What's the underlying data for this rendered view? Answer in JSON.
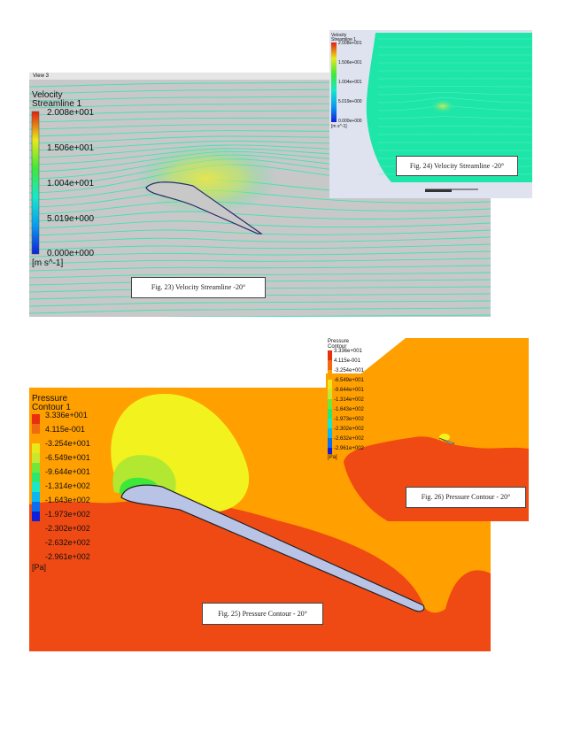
{
  "fig23": {
    "view_label": "View 3",
    "legend_title": "Velocity",
    "legend_subtitle": "Streamline 1",
    "levels": [
      "2.008e+001",
      "1.506e+001",
      "1.004e+001",
      "5.019e+000",
      "0.000e+000"
    ],
    "unit": "[m s^-1]",
    "caption": "Fig. 23) Velocity Streamline -20°"
  },
  "fig24": {
    "legend_title": "Velocity",
    "legend_subtitle": "Streamline 1",
    "levels": [
      "2.008e+001",
      "1.506e+001",
      "1.004e+001",
      "5.019e+000",
      "0.000e+000"
    ],
    "unit": "[m s^-1]",
    "caption": "Fig. 24) Velocity Streamline -20°"
  },
  "fig25": {
    "legend_title": "Pressure",
    "legend_subtitle": "Contour 1",
    "levels": [
      "3.336e+001",
      "4.115e-001",
      "-3.254e+001",
      "-6.549e+001",
      "-9.644e+001",
      "-1.314e+002",
      "-1.643e+002",
      "-1.973e+002",
      "-2.302e+002",
      "-2.632e+002",
      "-2.961e+002"
    ],
    "unit": "[Pa]",
    "caption": "Fig. 25) Pressure Contour - 20°"
  },
  "fig26": {
    "legend_title": "Pressure",
    "legend_subtitle": "Contour",
    "levels": [
      "3.336e+001",
      "4.115e-001",
      "-3.254e+001",
      "-6.549e+001",
      "-9.644e+001",
      "-1.314e+002",
      "-1.643e+002",
      "-1.973e+002",
      "-2.302e+002",
      "-2.632e+002",
      "-2.961e+002"
    ],
    "unit": "[Pa]",
    "caption": "Fig. 26) Pressure Contour - 20°"
  },
  "colors": {
    "stream_bg": "#c8c8c8",
    "stream_line": "#3fe3b4",
    "pressure_far": "#ff9f00",
    "pressure_low": "#f04a14",
    "pressure_yellow": "#f2f21e",
    "airfoil": "#b9c3e6"
  }
}
